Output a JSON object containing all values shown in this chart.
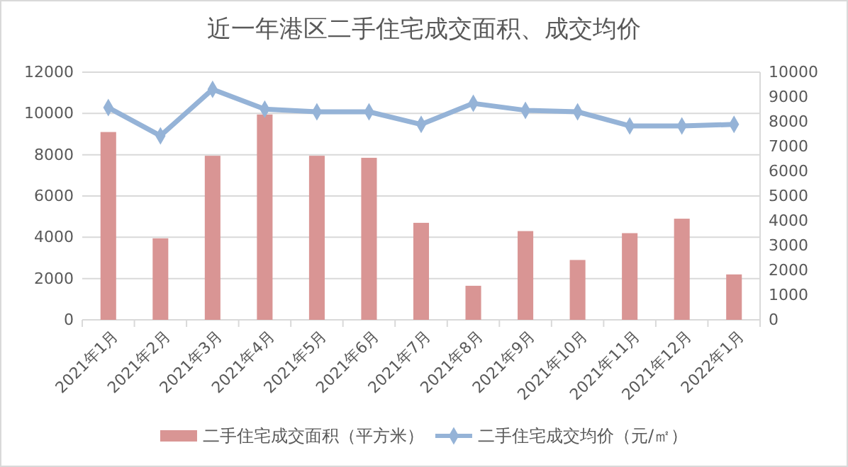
{
  "chart_data": {
    "type": "bar",
    "title": "近一年港区二手住宅成交面积、成交均价",
    "categories": [
      "2021年1月",
      "2021年2月",
      "2021年3月",
      "2021年4月",
      "2021年5月",
      "2021年6月",
      "2021年7月",
      "2021年8月",
      "2021年9月",
      "2021年10月",
      "2021年11月",
      "2021年12月",
      "2022年1月"
    ],
    "series": [
      {
        "name": "二手住宅成交面积（平方米）",
        "color": "#d99594",
        "values": [
          9100,
          3950,
          7950,
          9950,
          7950,
          7850,
          4700,
          1650,
          4300,
          2900,
          4200,
          4900,
          2200
        ]
      },
      {
        "name": "二手住宅成交均价（元/㎡）",
        "type": "line",
        "axis": "y2",
        "color": "#95b3d7",
        "values": [
          8570,
          7430,
          9310,
          8510,
          8400,
          8400,
          7890,
          8740,
          8460,
          8400,
          7830,
          7830,
          7890
        ]
      }
    ],
    "ylim": [
      0,
      12000
    ],
    "yticks": [
      0,
      2000,
      4000,
      6000,
      8000,
      10000,
      12000
    ],
    "y2lim": [
      0,
      10000
    ],
    "y2ticks": [
      0,
      1000,
      2000,
      3000,
      4000,
      5000,
      6000,
      7000,
      8000,
      9000,
      10000
    ],
    "grid": "y",
    "legend": "bottom",
    "marker": "diamond",
    "line_style": "solid"
  }
}
